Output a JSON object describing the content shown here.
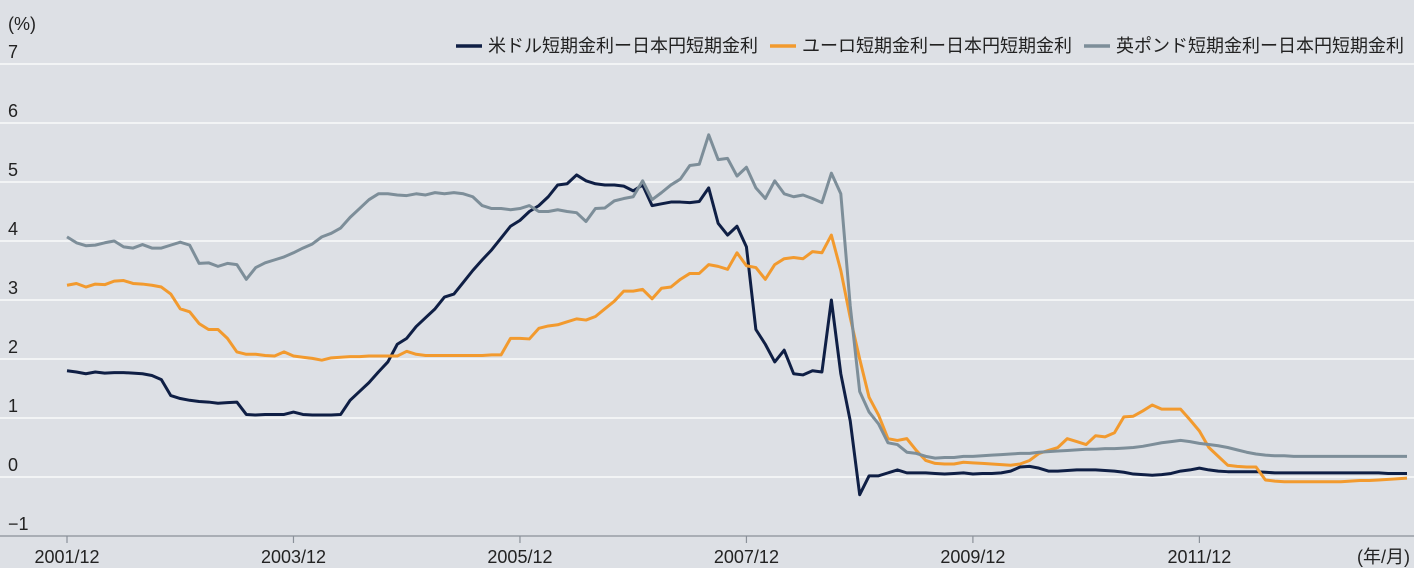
{
  "chart_data": {
    "type": "line",
    "y_label": "(%)",
    "x_label": "(年/月)",
    "categories": [
      "2001/12",
      null,
      null,
      null,
      null,
      null,
      null,
      null,
      null,
      null,
      null,
      null,
      null,
      null,
      null,
      null,
      null,
      null,
      null,
      null,
      null,
      null,
      null,
      null,
      "2003/12",
      null,
      null,
      null,
      null,
      null,
      null,
      null,
      null,
      null,
      null,
      null,
      null,
      null,
      null,
      null,
      null,
      null,
      null,
      null,
      null,
      null,
      null,
      null,
      "2005/12",
      null,
      null,
      null,
      null,
      null,
      null,
      null,
      null,
      null,
      null,
      null,
      null,
      null,
      null,
      null,
      null,
      null,
      null,
      null,
      null,
      null,
      null,
      null,
      "2007/12",
      null,
      null,
      null,
      null,
      null,
      null,
      null,
      null,
      null,
      null,
      null,
      null,
      null,
      null,
      null,
      null,
      null,
      null,
      null,
      null,
      null,
      null,
      null,
      "2009/12",
      null,
      null,
      null,
      null,
      null,
      null,
      null,
      null,
      null,
      null,
      null,
      null,
      null,
      null,
      null,
      null,
      null,
      null,
      null,
      null,
      null,
      null,
      null,
      "2011/12",
      null,
      null,
      null,
      null,
      null,
      null,
      null,
      null,
      null,
      null,
      null,
      null,
      null,
      null,
      null,
      null,
      null,
      null,
      null,
      null,
      null,
      null
    ],
    "series": [
      {
        "name": "米ドル短期金利ー日本円短期金利",
        "color": "#0f1f45",
        "values": [
          1.8,
          1.78,
          1.75,
          1.78,
          1.76,
          1.77,
          1.77,
          1.76,
          1.75,
          1.72,
          1.65,
          1.38,
          1.33,
          1.3,
          1.28,
          1.27,
          1.25,
          1.26,
          1.27,
          1.06,
          1.05,
          1.06,
          1.06,
          1.06,
          1.1,
          1.06,
          1.05,
          1.05,
          1.05,
          1.06,
          1.3,
          1.45,
          1.6,
          1.78,
          1.95,
          2.25,
          2.35,
          2.55,
          2.7,
          2.85,
          3.05,
          3.1,
          3.3,
          3.5,
          3.68,
          3.85,
          4.05,
          4.25,
          4.35,
          4.5,
          4.6,
          4.75,
          4.95,
          4.97,
          5.12,
          5.02,
          4.97,
          4.95,
          4.95,
          4.93,
          4.85,
          4.95,
          4.6,
          4.63,
          4.66,
          4.66,
          4.65,
          4.67,
          4.9,
          4.3,
          4.1,
          4.25,
          3.9,
          2.5,
          2.25,
          1.95,
          2.15,
          1.75,
          1.73,
          1.8,
          1.78,
          3.0,
          1.75,
          0.95,
          -0.3,
          0.02,
          0.02,
          0.07,
          0.12,
          0.07,
          0.07,
          0.07,
          0.06,
          0.05,
          0.06,
          0.07,
          0.05,
          0.06,
          0.06,
          0.07,
          0.1,
          0.17,
          0.18,
          0.15,
          0.1,
          0.1,
          0.11,
          0.12,
          0.12,
          0.12,
          0.11,
          0.1,
          0.08,
          0.05,
          0.04,
          0.03,
          0.04,
          0.06,
          0.1,
          0.12,
          0.15,
          0.12,
          0.1,
          0.09,
          0.09,
          0.09,
          0.09,
          0.08,
          0.07,
          0.07,
          0.07,
          0.07,
          0.07,
          0.07,
          0.07,
          0.07,
          0.07,
          0.07,
          0.07,
          0.07,
          0.06,
          0.06,
          0.06
        ]
      },
      {
        "name": "ユーロ短期金利ー日本円短期金利",
        "color": "#f29a2e",
        "values": [
          3.25,
          3.28,
          3.22,
          3.27,
          3.26,
          3.32,
          3.33,
          3.28,
          3.27,
          3.25,
          3.22,
          3.1,
          2.85,
          2.8,
          2.6,
          2.5,
          2.5,
          2.35,
          2.12,
          2.08,
          2.08,
          2.06,
          2.05,
          2.12,
          2.05,
          2.03,
          2.01,
          1.98,
          2.02,
          2.03,
          2.04,
          2.04,
          2.05,
          2.05,
          2.05,
          2.05,
          2.13,
          2.08,
          2.06,
          2.06,
          2.06,
          2.06,
          2.06,
          2.06,
          2.06,
          2.07,
          2.07,
          2.35,
          2.35,
          2.34,
          2.52,
          2.56,
          2.58,
          2.63,
          2.68,
          2.66,
          2.72,
          2.85,
          2.98,
          3.15,
          3.15,
          3.18,
          3.02,
          3.2,
          3.22,
          3.35,
          3.45,
          3.45,
          3.6,
          3.57,
          3.52,
          3.8,
          3.58,
          3.55,
          3.35,
          3.6,
          3.7,
          3.72,
          3.7,
          3.82,
          3.8,
          4.1,
          3.5,
          2.7,
          2.0,
          1.35,
          1.05,
          0.65,
          0.62,
          0.65,
          0.45,
          0.28,
          0.23,
          0.22,
          0.22,
          0.25,
          0.24,
          0.23,
          0.22,
          0.21,
          0.2,
          0.22,
          0.28,
          0.4,
          0.45,
          0.5,
          0.65,
          0.6,
          0.55,
          0.7,
          0.68,
          0.75,
          1.02,
          1.03,
          1.12,
          1.22,
          1.15,
          1.15,
          1.15,
          0.97,
          0.78,
          0.5,
          0.35,
          0.2,
          0.18,
          0.17,
          0.17,
          -0.05,
          -0.07,
          -0.08,
          -0.08,
          -0.08,
          -0.08,
          -0.08,
          -0.08,
          -0.08,
          -0.07,
          -0.06,
          -0.06,
          -0.05,
          -0.04,
          -0.03,
          -0.02
        ]
      },
      {
        "name": "英ポンド短期金利ー日本円短期金利",
        "color": "#7d8e99",
        "values": [
          4.07,
          3.97,
          3.92,
          3.93,
          3.97,
          4.0,
          3.9,
          3.88,
          3.94,
          3.88,
          3.88,
          3.93,
          3.98,
          3.93,
          3.62,
          3.63,
          3.57,
          3.62,
          3.6,
          3.35,
          3.55,
          3.63,
          3.68,
          3.73,
          3.8,
          3.88,
          3.95,
          4.07,
          4.13,
          4.22,
          4.4,
          4.55,
          4.7,
          4.8,
          4.8,
          4.78,
          4.77,
          4.8,
          4.78,
          4.82,
          4.8,
          4.82,
          4.8,
          4.75,
          4.6,
          4.55,
          4.55,
          4.53,
          4.55,
          4.6,
          4.5,
          4.5,
          4.53,
          4.5,
          4.48,
          4.33,
          4.55,
          4.56,
          4.68,
          4.72,
          4.75,
          5.02,
          4.7,
          4.82,
          4.95,
          5.05,
          5.28,
          5.3,
          5.8,
          5.38,
          5.4,
          5.1,
          5.25,
          4.9,
          4.72,
          5.02,
          4.8,
          4.75,
          4.78,
          4.72,
          4.65,
          5.15,
          4.8,
          2.9,
          1.45,
          1.1,
          0.9,
          0.58,
          0.55,
          0.42,
          0.4,
          0.35,
          0.32,
          0.33,
          0.33,
          0.35,
          0.35,
          0.36,
          0.37,
          0.38,
          0.39,
          0.4,
          0.4,
          0.42,
          0.43,
          0.44,
          0.45,
          0.46,
          0.47,
          0.47,
          0.48,
          0.48,
          0.49,
          0.5,
          0.52,
          0.55,
          0.58,
          0.6,
          0.62,
          0.6,
          0.57,
          0.55,
          0.53,
          0.5,
          0.46,
          0.42,
          0.39,
          0.37,
          0.36,
          0.36,
          0.35,
          0.35,
          0.35,
          0.35,
          0.35,
          0.35,
          0.35,
          0.35,
          0.35,
          0.35,
          0.35,
          0.35,
          0.35
        ]
      }
    ],
    "ylim": [
      -1,
      7
    ],
    "yticks": [
      {
        "value": -1,
        "label": "−1"
      },
      0,
      1,
      2,
      3,
      4,
      5,
      6,
      7
    ],
    "grid": true,
    "legend": "top-right"
  }
}
